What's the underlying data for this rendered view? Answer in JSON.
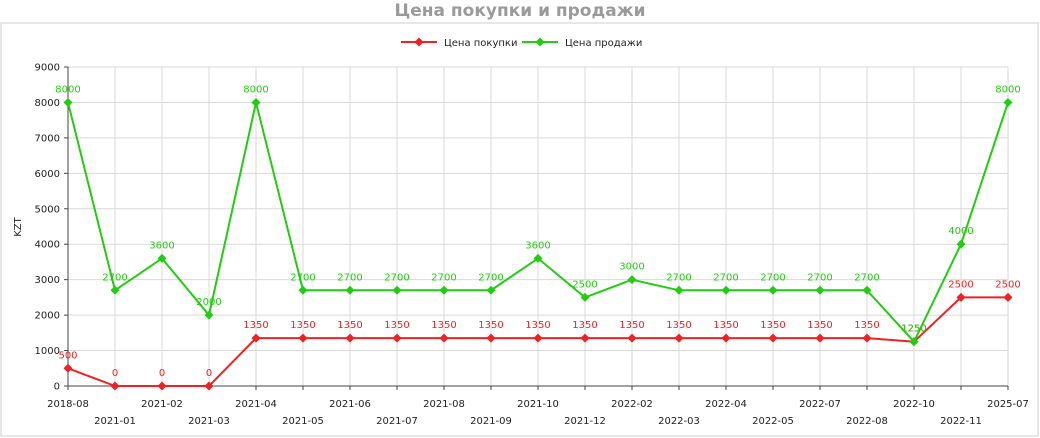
{
  "chart_data": {
    "type": "line",
    "title": "Цена покупки и продажи",
    "xlabel": "",
    "ylabel": "KZT",
    "ylim": [
      0,
      9000
    ],
    "yticks": [
      0,
      1000,
      2000,
      3000,
      4000,
      5000,
      6000,
      7000,
      8000,
      9000
    ],
    "grid": true,
    "legend_position": "top-center",
    "categories": [
      "2018-08",
      "2021-01",
      "2021-02",
      "2021-03",
      "2021-04",
      "2021-05",
      "2021-06",
      "2021-07",
      "2021-08",
      "2021-09",
      "2021-10",
      "2021-12",
      "2022-02",
      "2022-03",
      "2022-04",
      "2022-05",
      "2022-07",
      "2022-08",
      "2022-10",
      "2022-11",
      "2025-07"
    ],
    "series": [
      {
        "name": "Цена покупки",
        "color": "#ee2222",
        "values": [
          500,
          0,
          0,
          0,
          1350,
          1350,
          1350,
          1350,
          1350,
          1350,
          1350,
          1350,
          1350,
          1350,
          1350,
          1350,
          1350,
          1350,
          1250,
          2500,
          2500
        ]
      },
      {
        "name": "Цена продажи",
        "color": "#22cc11",
        "values": [
          8000,
          2700,
          3600,
          2000,
          8000,
          2700,
          2700,
          2700,
          2700,
          2700,
          3600,
          2500,
          3000,
          2700,
          2700,
          2700,
          2700,
          2700,
          1250,
          4000,
          8000
        ]
      }
    ]
  }
}
